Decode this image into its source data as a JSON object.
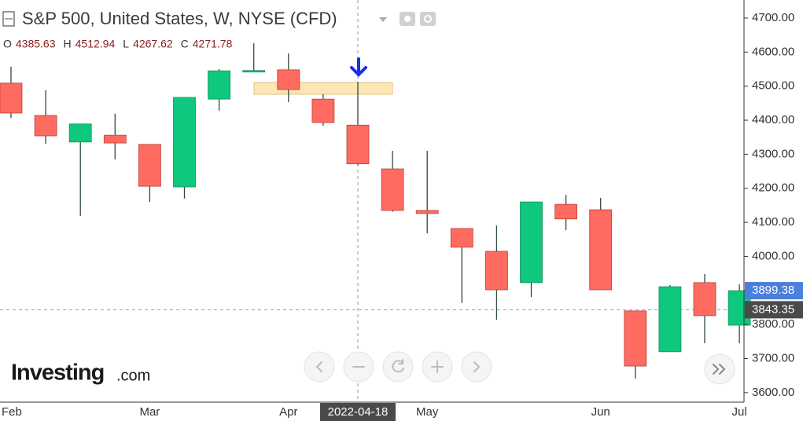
{
  "chart_data": {
    "type": "candlestick",
    "title": "S&P 500, United States, W, NYSE (CFD)",
    "ohlc_legend": [
      {
        "label": "O",
        "value": 4385.63
      },
      {
        "label": "H",
        "value": 4512.94
      },
      {
        "label": "L",
        "value": 4267.62
      },
      {
        "label": "C",
        "value": 4271.78
      }
    ],
    "categories": [
      "Feb",
      null,
      null,
      null,
      "Mar",
      null,
      null,
      null,
      "Apr",
      null,
      null,
      null,
      "May",
      null,
      null,
      null,
      null,
      "Jun",
      null,
      null,
      null,
      "Jul"
    ],
    "open": [
      4509,
      4414,
      4336,
      4356,
      4329,
      4204,
      4462,
      4543,
      4548,
      4462,
      4385.63,
      4257,
      4135,
      4082,
      4015,
      3923,
      4153,
      4137,
      3840,
      3720,
      3923,
      3798
    ],
    "high": [
      4557,
      4488,
      4389,
      4419,
      4329,
      4467,
      4550,
      4626,
      4596,
      4476,
      4512.94,
      4310,
      4310,
      4082,
      4091,
      4160,
      4181,
      4172,
      3840,
      3916,
      3948,
      3918
    ],
    "low": [
      4407,
      4331,
      4119,
      4285,
      4160,
      4170,
      4428,
      4541,
      4453,
      4384,
      4267.62,
      4131,
      4068,
      3863,
      3814,
      3881,
      4077,
      3902,
      3641,
      3720,
      3745,
      3745
    ],
    "close": [
      4421,
      4354,
      4389,
      4333,
      4206,
      4467,
      4545,
      4546,
      4490,
      4393,
      4271.78,
      4135,
      4126,
      4027,
      3902,
      4160,
      4110,
      3902,
      3678,
      3911,
      3826,
      3899.38
    ],
    "up_color": "#0dc87d",
    "down_color": "#ff6a61",
    "wick_color": "#2f4a3c",
    "ylim": [
      3572,
      4753
    ],
    "yticks": [
      {
        "value": 3600,
        "label": "3600.00"
      },
      {
        "value": 3700,
        "label": "3700.00"
      },
      {
        "value": 3800,
        "label": "3800.00"
      },
      {
        "value": 3900,
        "label": "3900.00"
      },
      {
        "value": 4000,
        "label": "4000.00"
      },
      {
        "value": 4100,
        "label": "4100.00"
      },
      {
        "value": 4200,
        "label": "4200.00"
      },
      {
        "value": 4300,
        "label": "4300.00"
      },
      {
        "value": 4400,
        "label": "4400.00"
      },
      {
        "value": 4500,
        "label": "4500.00"
      },
      {
        "value": 4600,
        "label": "4600.00"
      },
      {
        "value": 4700,
        "label": "4700.00"
      }
    ],
    "grid": false,
    "crosshair": {
      "date": "2022-04-18",
      "index": 10,
      "price": 3843.35
    },
    "logo": {
      "name": "Investing",
      "suffix": ".com"
    }
  }
}
